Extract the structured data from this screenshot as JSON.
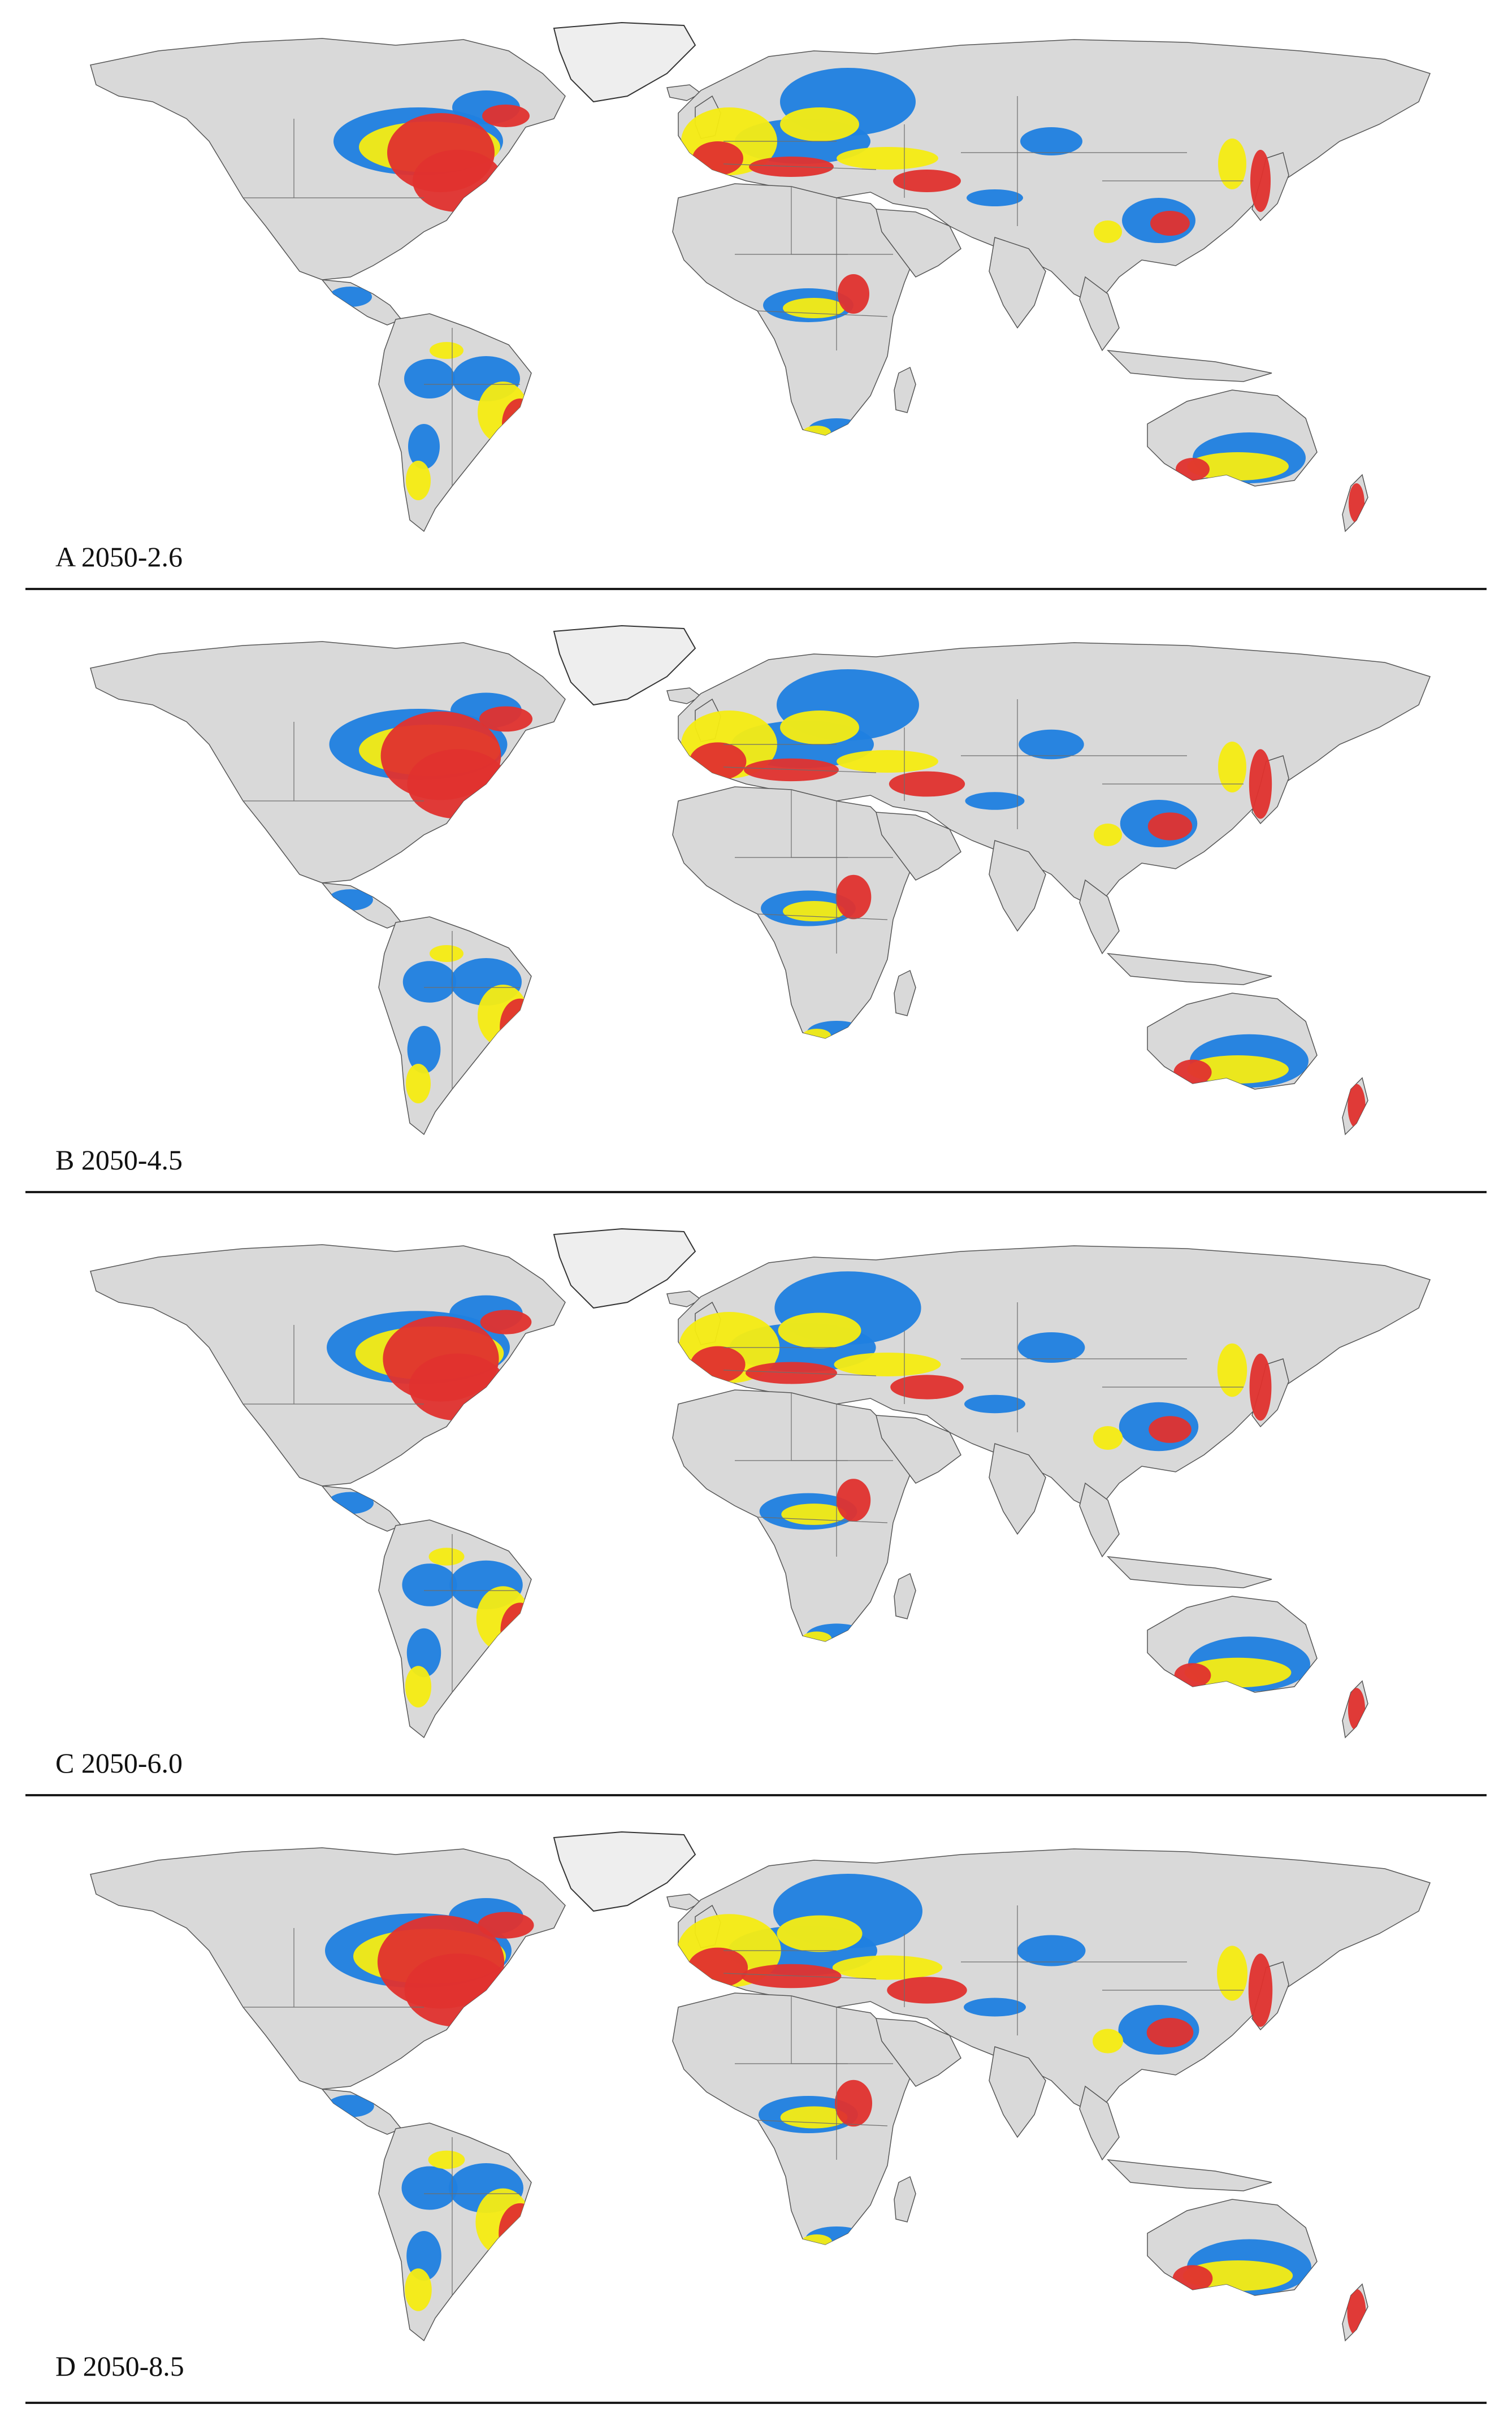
{
  "panels": [
    {
      "label": "A 2050-2.6"
    },
    {
      "label": "B 2050-4.5"
    },
    {
      "label": "C 2050-6.0"
    },
    {
      "label": "D 2050-8.5"
    }
  ],
  "colors": {
    "land": "#d9d9d9",
    "low": "#1f7fe0",
    "moderate": "#f5ec12",
    "high": "#e0312e",
    "background": "#ffffff"
  }
}
